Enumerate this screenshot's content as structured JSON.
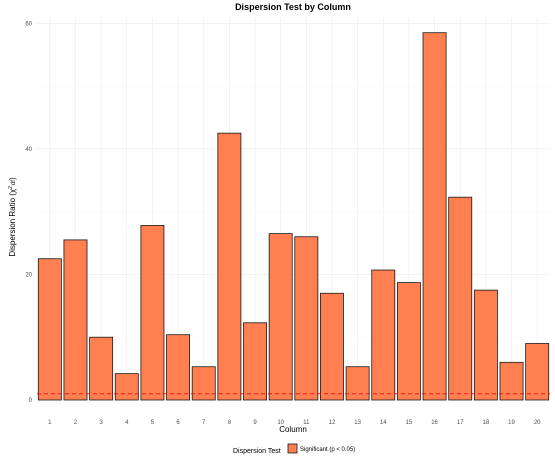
{
  "chart_data": {
    "type": "bar",
    "title": "Dispersion Test by Column",
    "xlabel": "Column",
    "ylabel_prefix": "Dispersion Ratio (",
    "ylabel_chi": "χ",
    "ylabel_sup": "2",
    "ylabel_df": "df",
    "ylabel_suffix": ")",
    "categories": [
      "1",
      "2",
      "3",
      "4",
      "5",
      "6",
      "7",
      "8",
      "9",
      "10",
      "11",
      "12",
      "13",
      "14",
      "15",
      "16",
      "17",
      "18",
      "19",
      "20"
    ],
    "series": [
      {
        "name": "Significant (p < 0.05)",
        "color": "#ff7f50",
        "values": [
          22.5,
          25.5,
          10.0,
          4.2,
          27.8,
          10.4,
          5.3,
          42.5,
          12.3,
          26.5,
          26.0,
          17.0,
          5.3,
          20.7,
          18.7,
          58.5,
          32.3,
          17.5,
          6.0,
          9.0
        ]
      }
    ],
    "reference_line": {
      "value": 1,
      "color": "#e41a1c",
      "style": "dashed"
    },
    "ylim": [
      0,
      61
    ],
    "yticks": [
      0,
      20,
      40,
      60
    ],
    "grid": true,
    "legend": {
      "title": "Dispersion Test",
      "position": "bottom"
    }
  }
}
